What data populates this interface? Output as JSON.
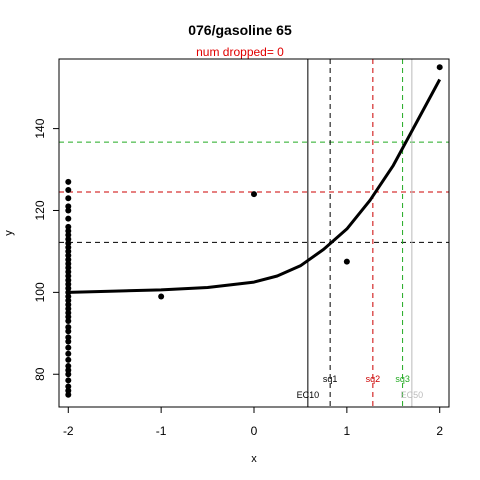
{
  "chart_data": {
    "type": "scatter",
    "title": "076/gasoline 65",
    "subtitle": "num dropped= 0",
    "subtitle_color": "#e00000",
    "xlabel": "x",
    "ylabel": "y",
    "xlim": [
      -2.1,
      2.1
    ],
    "ylim": [
      72,
      157
    ],
    "xticks": [
      -2,
      -1,
      0,
      1,
      2
    ],
    "yticks": [
      80,
      100,
      120,
      140
    ],
    "grid": false,
    "points": [
      {
        "x": -2,
        "y": 75
      },
      {
        "x": -2,
        "y": 76
      },
      {
        "x": -2,
        "y": 77
      },
      {
        "x": -2,
        "y": 78.5
      },
      {
        "x": -2,
        "y": 80
      },
      {
        "x": -2,
        "y": 81
      },
      {
        "x": -2,
        "y": 82
      },
      {
        "x": -2,
        "y": 83.5
      },
      {
        "x": -2,
        "y": 85
      },
      {
        "x": -2,
        "y": 86.5
      },
      {
        "x": -2,
        "y": 88
      },
      {
        "x": -2,
        "y": 89
      },
      {
        "x": -2,
        "y": 90.5
      },
      {
        "x": -2,
        "y": 91.5
      },
      {
        "x": -2,
        "y": 93
      },
      {
        "x": -2,
        "y": 94
      },
      {
        "x": -2,
        "y": 95
      },
      {
        "x": -2,
        "y": 96
      },
      {
        "x": -2,
        "y": 97
      },
      {
        "x": -2,
        "y": 98
      },
      {
        "x": -2,
        "y": 99
      },
      {
        "x": -2,
        "y": 100
      },
      {
        "x": -2,
        "y": 101
      },
      {
        "x": -2,
        "y": 102
      },
      {
        "x": -2,
        "y": 103
      },
      {
        "x": -2,
        "y": 104
      },
      {
        "x": -2,
        "y": 105
      },
      {
        "x": -2,
        "y": 106
      },
      {
        "x": -2,
        "y": 107
      },
      {
        "x": -2,
        "y": 108
      },
      {
        "x": -2,
        "y": 109
      },
      {
        "x": -2,
        "y": 110
      },
      {
        "x": -2,
        "y": 111
      },
      {
        "x": -2,
        "y": 112
      },
      {
        "x": -2,
        "y": 113
      },
      {
        "x": -2,
        "y": 114
      },
      {
        "x": -2,
        "y": 115
      },
      {
        "x": -2,
        "y": 116
      },
      {
        "x": -2,
        "y": 118
      },
      {
        "x": -2,
        "y": 120
      },
      {
        "x": -2,
        "y": 121
      },
      {
        "x": -2,
        "y": 123
      },
      {
        "x": -2,
        "y": 125
      },
      {
        "x": -2,
        "y": 127
      },
      {
        "x": -1,
        "y": 99
      },
      {
        "x": 0,
        "y": 124
      },
      {
        "x": 1,
        "y": 107.5
      },
      {
        "x": 2,
        "y": 155
      }
    ],
    "fit_curve": [
      {
        "x": -2,
        "y": 100
      },
      {
        "x": -1.5,
        "y": 100.3
      },
      {
        "x": -1,
        "y": 100.6
      },
      {
        "x": -0.5,
        "y": 101.2
      },
      {
        "x": 0,
        "y": 102.5
      },
      {
        "x": 0.25,
        "y": 104
      },
      {
        "x": 0.5,
        "y": 106.5
      },
      {
        "x": 0.75,
        "y": 110.5
      },
      {
        "x": 1,
        "y": 115.5
      },
      {
        "x": 1.25,
        "y": 122.5
      },
      {
        "x": 1.5,
        "y": 131
      },
      {
        "x": 1.75,
        "y": 141.5
      },
      {
        "x": 2,
        "y": 152
      }
    ],
    "vertical_lines": [
      {
        "label": "EC10",
        "x": 0.58,
        "color": "#000000",
        "style": "solid"
      },
      {
        "label": "sq1",
        "x": 0.82,
        "color": "#000000",
        "style": "dashed"
      },
      {
        "label": "sq2",
        "x": 1.28,
        "color": "#cc0000",
        "style": "dashed"
      },
      {
        "label": "sq3",
        "x": 1.6,
        "color": "#22aa22",
        "style": "dashed"
      },
      {
        "label": "EC50",
        "x": 1.7,
        "color": "#bbbbbb",
        "style": "solid"
      }
    ],
    "horizontal_lines": [
      {
        "y": 112.2,
        "color": "#000000"
      },
      {
        "y": 124.5,
        "color": "#cc0000"
      },
      {
        "y": 136.7,
        "color": "#22aa22"
      }
    ]
  }
}
